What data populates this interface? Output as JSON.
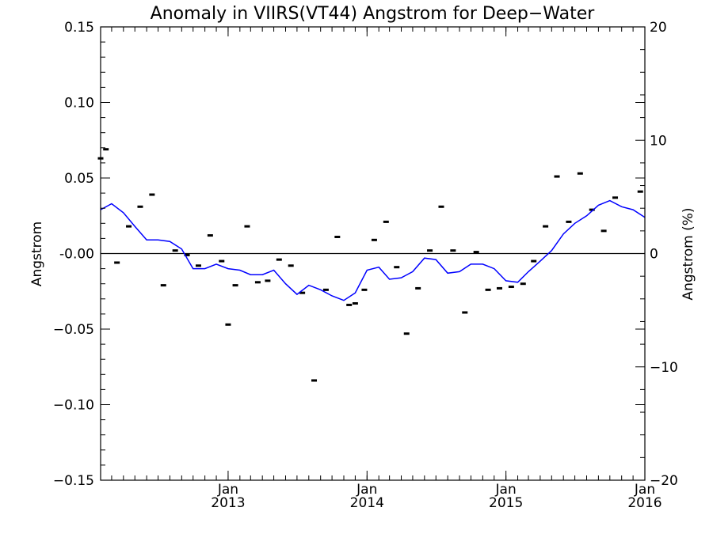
{
  "chart_data": {
    "type": "line",
    "title": "Anomaly in VIIRS(VT44) Angstrom for Deep−Water",
    "ylabel": "Angstrom",
    "ylabel_right": "Angstrom (%)",
    "xlim": [
      "2012-02",
      "2016-01"
    ],
    "ylim": [
      -0.15,
      0.15
    ],
    "ylim_right": [
      -20,
      20
    ],
    "xticks": [
      {
        "date": "2013-01",
        "month": "Jan",
        "year": "2013"
      },
      {
        "date": "2014-01",
        "month": "Jan",
        "year": "2014"
      },
      {
        "date": "2015-01",
        "month": "Jan",
        "year": "2015"
      },
      {
        "date": "2016-01",
        "month": "Jan",
        "year": "2016"
      }
    ],
    "yticks": [
      "0.15",
      "0.10",
      "0.05",
      "-0.00",
      "−0.05",
      "−0.10",
      "−0.15"
    ],
    "yticks_right": [
      "20",
      "10",
      "0",
      "−10",
      "−20"
    ],
    "reference_line": 0,
    "series": [
      {
        "style": "points",
        "color": "#000000",
        "points": [
          {
            "x": "2012-02-01",
            "y": 0.063
          },
          {
            "x": "2012-02-15",
            "y": 0.069
          },
          {
            "x": "2012-03-15",
            "y": -0.006
          },
          {
            "x": "2012-04-15",
            "y": 0.018
          },
          {
            "x": "2012-05-15",
            "y": 0.031
          },
          {
            "x": "2012-06-15",
            "y": 0.039
          },
          {
            "x": "2012-07-15",
            "y": -0.021
          },
          {
            "x": "2012-08-15",
            "y": 0.002
          },
          {
            "x": "2012-09-15",
            "y": -0.001
          },
          {
            "x": "2012-10-15",
            "y": -0.008
          },
          {
            "x": "2012-11-15",
            "y": 0.012
          },
          {
            "x": "2012-12-15",
            "y": -0.005
          },
          {
            "x": "2013-01-01",
            "y": -0.047
          },
          {
            "x": "2013-01-20",
            "y": -0.021
          },
          {
            "x": "2013-02-20",
            "y": 0.018
          },
          {
            "x": "2013-03-20",
            "y": -0.019
          },
          {
            "x": "2013-04-15",
            "y": -0.018
          },
          {
            "x": "2013-05-15",
            "y": -0.004
          },
          {
            "x": "2013-06-15",
            "y": -0.008
          },
          {
            "x": "2013-07-15",
            "y": -0.026
          },
          {
            "x": "2013-08-15",
            "y": -0.084
          },
          {
            "x": "2013-09-15",
            "y": -0.024
          },
          {
            "x": "2013-10-15",
            "y": 0.011
          },
          {
            "x": "2013-11-15",
            "y": -0.034
          },
          {
            "x": "2013-12-01",
            "y": -0.033
          },
          {
            "x": "2013-12-25",
            "y": -0.024
          },
          {
            "x": "2014-01-20",
            "y": 0.009
          },
          {
            "x": "2014-02-20",
            "y": 0.021
          },
          {
            "x": "2014-03-20",
            "y": -0.009
          },
          {
            "x": "2014-04-15",
            "y": -0.053
          },
          {
            "x": "2014-05-15",
            "y": -0.023
          },
          {
            "x": "2014-06-15",
            "y": 0.002
          },
          {
            "x": "2014-07-15",
            "y": 0.031
          },
          {
            "x": "2014-08-15",
            "y": 0.002
          },
          {
            "x": "2014-09-15",
            "y": -0.039
          },
          {
            "x": "2014-10-15",
            "y": 0.001
          },
          {
            "x": "2014-11-15",
            "y": -0.024
          },
          {
            "x": "2014-12-15",
            "y": -0.023
          },
          {
            "x": "2015-01-15",
            "y": -0.022
          },
          {
            "x": "2015-02-15",
            "y": -0.02
          },
          {
            "x": "2015-03-15",
            "y": -0.005
          },
          {
            "x": "2015-04-15",
            "y": 0.018
          },
          {
            "x": "2015-05-15",
            "y": 0.051
          },
          {
            "x": "2015-06-15",
            "y": 0.021
          },
          {
            "x": "2015-07-15",
            "y": 0.053
          },
          {
            "x": "2015-08-15",
            "y": 0.029
          },
          {
            "x": "2015-09-15",
            "y": 0.015
          },
          {
            "x": "2015-10-15",
            "y": 0.037
          },
          {
            "x": "2015-12-20",
            "y": 0.041
          }
        ]
      },
      {
        "style": "line",
        "color": "#0000ff",
        "points": [
          {
            "x": "2012-02-01",
            "y": 0.029
          },
          {
            "x": "2012-03-01",
            "y": 0.033
          },
          {
            "x": "2012-04-01",
            "y": 0.027
          },
          {
            "x": "2012-05-01",
            "y": 0.018
          },
          {
            "x": "2012-06-01",
            "y": 0.009
          },
          {
            "x": "2012-07-01",
            "y": 0.009
          },
          {
            "x": "2012-08-01",
            "y": 0.008
          },
          {
            "x": "2012-09-01",
            "y": 0.003
          },
          {
            "x": "2012-10-01",
            "y": -0.01
          },
          {
            "x": "2012-11-01",
            "y": -0.01
          },
          {
            "x": "2012-12-01",
            "y": -0.007
          },
          {
            "x": "2013-01-01",
            "y": -0.01
          },
          {
            "x": "2013-02-01",
            "y": -0.011
          },
          {
            "x": "2013-03-01",
            "y": -0.014
          },
          {
            "x": "2013-04-01",
            "y": -0.014
          },
          {
            "x": "2013-05-01",
            "y": -0.011
          },
          {
            "x": "2013-06-01",
            "y": -0.02
          },
          {
            "x": "2013-07-01",
            "y": -0.027
          },
          {
            "x": "2013-08-01",
            "y": -0.021
          },
          {
            "x": "2013-09-01",
            "y": -0.024
          },
          {
            "x": "2013-10-01",
            "y": -0.028
          },
          {
            "x": "2013-11-01",
            "y": -0.031
          },
          {
            "x": "2013-12-01",
            "y": -0.026
          },
          {
            "x": "2014-01-01",
            "y": -0.011
          },
          {
            "x": "2014-02-01",
            "y": -0.009
          },
          {
            "x": "2014-03-01",
            "y": -0.017
          },
          {
            "x": "2014-04-01",
            "y": -0.016
          },
          {
            "x": "2014-05-01",
            "y": -0.012
          },
          {
            "x": "2014-06-01",
            "y": -0.003
          },
          {
            "x": "2014-07-01",
            "y": -0.004
          },
          {
            "x": "2014-08-01",
            "y": -0.013
          },
          {
            "x": "2014-09-01",
            "y": -0.012
          },
          {
            "x": "2014-10-01",
            "y": -0.007
          },
          {
            "x": "2014-11-01",
            "y": -0.007
          },
          {
            "x": "2014-12-01",
            "y": -0.01
          },
          {
            "x": "2015-01-01",
            "y": -0.018
          },
          {
            "x": "2015-02-01",
            "y": -0.019
          },
          {
            "x": "2015-03-01",
            "y": -0.012
          },
          {
            "x": "2015-04-01",
            "y": -0.005
          },
          {
            "x": "2015-05-01",
            "y": 0.002
          },
          {
            "x": "2015-06-01",
            "y": 0.013
          },
          {
            "x": "2015-07-01",
            "y": 0.02
          },
          {
            "x": "2015-08-01",
            "y": 0.025
          },
          {
            "x": "2015-09-01",
            "y": 0.032
          },
          {
            "x": "2015-10-01",
            "y": 0.035
          },
          {
            "x": "2015-11-01",
            "y": 0.031
          },
          {
            "x": "2015-12-01",
            "y": 0.029
          },
          {
            "x": "2016-01-01",
            "y": 0.024
          }
        ]
      }
    ]
  }
}
